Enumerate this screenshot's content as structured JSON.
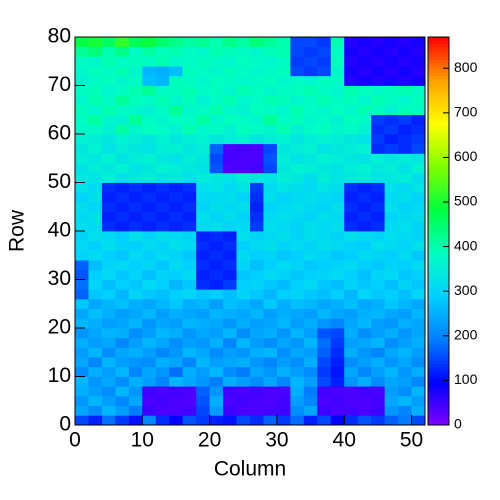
{
  "chart_data": {
    "type": "heatmap",
    "xlabel": "Column",
    "ylabel": "Row",
    "xlim": [
      0,
      52
    ],
    "ylim": [
      0,
      80
    ],
    "zlim": [
      0,
      870
    ],
    "xticks": [
      0,
      10,
      20,
      30,
      40,
      50
    ],
    "yticks": [
      0,
      10,
      20,
      30,
      40,
      50,
      60,
      70,
      80
    ],
    "zticks": [
      0,
      100,
      200,
      300,
      400,
      500,
      600,
      700,
      800
    ],
    "colorscale": [
      "#8000ff",
      "#0000ff",
      "#0080ff",
      "#00d0ff",
      "#00ffc0",
      "#00ff40",
      "#80ff00",
      "#ffff00",
      "#ffa000",
      "#ff0000"
    ],
    "z": [
      [
        150,
        120,
        180,
        140,
        110,
        200,
        130,
        100,
        160,
        140,
        120,
        110,
        150,
        130,
        170,
        140,
        180,
        120,
        150,
        100,
        130,
        160,
        140,
        170,
        190,
        150
      ],
      [
        240,
        210,
        260,
        230,
        190,
        50,
        40,
        40,
        45,
        150,
        230,
        50,
        40,
        40,
        45,
        50,
        210,
        240,
        50,
        40,
        45,
        40,
        50,
        220,
        200,
        250
      ],
      [
        220,
        260,
        230,
        200,
        240,
        40,
        45,
        40,
        40,
        160,
        250,
        40,
        45,
        40,
        40,
        45,
        230,
        200,
        40,
        45,
        40,
        40,
        45,
        240,
        260,
        230
      ],
      [
        250,
        230,
        210,
        260,
        220,
        45,
        40,
        45,
        40,
        170,
        220,
        45,
        40,
        45,
        40,
        40,
        250,
        190,
        45,
        40,
        40,
        45,
        40,
        230,
        210,
        260
      ],
      [
        260,
        220,
        240,
        210,
        250,
        230,
        200,
        260,
        240,
        220,
        190,
        250,
        230,
        210,
        240,
        200,
        260,
        230,
        150,
        120,
        220,
        250,
        210,
        240,
        230,
        200
      ],
      [
        210,
        250,
        230,
        260,
        200,
        240,
        220,
        180,
        250,
        230,
        260,
        210,
        190,
        240,
        220,
        250,
        230,
        210,
        140,
        110,
        240,
        200,
        230,
        260,
        220,
        250
      ],
      [
        240,
        200,
        260,
        230,
        220,
        210,
        250,
        240,
        200,
        260,
        230,
        240,
        250,
        220,
        200,
        230,
        210,
        250,
        150,
        120,
        210,
        230,
        250,
        220,
        240,
        210
      ],
      [
        230,
        260,
        210,
        240,
        250,
        230,
        200,
        220,
        260,
        240,
        210,
        230,
        220,
        250,
        260,
        210,
        240,
        230,
        170,
        130,
        250,
        220,
        200,
        240,
        260,
        230
      ],
      [
        250,
        230,
        240,
        200,
        230,
        260,
        240,
        210,
        230,
        220,
        250,
        200,
        260,
        230,
        210,
        240,
        220,
        260,
        180,
        140,
        230,
        240,
        260,
        210,
        230,
        250
      ],
      [
        220,
        240,
        260,
        250,
        210,
        230,
        260,
        250,
        220,
        240,
        230,
        260,
        210,
        240,
        250,
        220,
        260,
        230,
        160,
        150,
        250,
        210,
        230,
        250,
        220,
        240
      ],
      [
        260,
        250,
        230,
        240,
        260,
        220,
        240,
        230,
        260,
        250,
        240,
        220,
        250,
        230,
        240,
        260,
        230,
        250,
        220,
        200,
        240,
        260,
        230,
        220,
        250,
        240
      ],
      [
        240,
        270,
        250,
        230,
        240,
        260,
        230,
        250,
        240,
        230,
        260,
        250,
        240,
        260,
        230,
        250,
        240,
        230,
        260,
        240,
        230,
        250,
        260,
        240,
        230,
        260
      ],
      [
        280,
        240,
        260,
        270,
        250,
        240,
        260,
        280,
        250,
        260,
        230,
        270,
        260,
        240,
        280,
        250,
        270,
        260,
        240,
        250,
        270,
        240,
        250,
        280,
        260,
        240
      ],
      [
        170,
        280,
        290,
        260,
        300,
        280,
        270,
        290,
        300,
        280,
        290,
        270,
        300,
        280,
        260,
        290,
        300,
        280,
        270,
        290,
        260,
        300,
        280,
        290,
        270,
        300
      ],
      [
        180,
        300,
        270,
        290,
        280,
        310,
        290,
        260,
        280,
        130,
        120,
        140,
        290,
        300,
        280,
        270,
        290,
        310,
        280,
        270,
        300,
        280,
        290,
        270,
        300,
        280
      ],
      [
        160,
        290,
        310,
        280,
        300,
        270,
        300,
        290,
        310,
        120,
        130,
        120,
        280,
        290,
        310,
        300,
        280,
        290,
        300,
        310,
        290,
        270,
        300,
        310,
        280,
        290
      ],
      [
        170,
        270,
        300,
        310,
        290,
        300,
        280,
        310,
        290,
        130,
        120,
        130,
        300,
        270,
        290,
        310,
        300,
        280,
        290,
        300,
        310,
        290,
        280,
        300,
        290,
        310
      ],
      [
        300,
        310,
        290,
        280,
        310,
        290,
        310,
        300,
        280,
        120,
        130,
        120,
        310,
        290,
        300,
        280,
        290,
        310,
        300,
        280,
        290,
        310,
        300,
        290,
        310,
        280
      ],
      [
        310,
        290,
        320,
        300,
        290,
        310,
        300,
        320,
        310,
        130,
        120,
        130,
        290,
        310,
        320,
        300,
        310,
        300,
        320,
        310,
        300,
        290,
        320,
        310,
        300,
        320
      ],
      [
        300,
        320,
        310,
        290,
        320,
        300,
        320,
        310,
        300,
        120,
        130,
        120,
        320,
        300,
        310,
        320,
        300,
        320,
        310,
        300,
        320,
        310,
        300,
        320,
        310,
        300
      ],
      [
        320,
        310,
        130,
        120,
        130,
        120,
        130,
        120,
        130,
        310,
        320,
        300,
        310,
        140,
        320,
        310,
        300,
        320,
        310,
        320,
        130,
        120,
        130,
        310,
        320,
        300
      ],
      [
        310,
        320,
        120,
        130,
        120,
        130,
        120,
        130,
        120,
        320,
        300,
        320,
        300,
        130,
        310,
        320,
        310,
        300,
        320,
        310,
        120,
        130,
        120,
        300,
        310,
        320
      ],
      [
        320,
        300,
        130,
        120,
        130,
        120,
        130,
        120,
        130,
        300,
        320,
        310,
        320,
        120,
        300,
        310,
        320,
        310,
        300,
        320,
        130,
        120,
        130,
        320,
        300,
        310
      ],
      [
        300,
        320,
        120,
        130,
        120,
        130,
        120,
        130,
        120,
        310,
        310,
        320,
        300,
        130,
        320,
        300,
        310,
        320,
        310,
        300,
        120,
        130,
        120,
        310,
        320,
        300
      ],
      [
        330,
        310,
        130,
        120,
        130,
        120,
        130,
        120,
        130,
        320,
        330,
        310,
        330,
        140,
        310,
        330,
        320,
        310,
        330,
        320,
        130,
        120,
        130,
        320,
        310,
        330
      ],
      [
        340,
        330,
        350,
        320,
        340,
        350,
        330,
        340,
        320,
        350,
        340,
        330,
        350,
        340,
        330,
        350,
        340,
        320,
        350,
        330,
        340,
        350,
        330,
        340,
        350,
        320
      ],
      [
        330,
        350,
        340,
        360,
        330,
        340,
        360,
        350,
        340,
        330,
        160,
        40,
        40,
        45,
        150,
        340,
        360,
        350,
        340,
        330,
        350,
        360,
        340,
        350,
        330,
        360
      ],
      [
        350,
        340,
        360,
        330,
        350,
        360,
        340,
        330,
        350,
        340,
        150,
        45,
        40,
        40,
        160,
        350,
        330,
        340,
        360,
        350,
        340,
        330,
        360,
        340,
        350,
        340
      ],
      [
        340,
        360,
        330,
        350,
        340,
        330,
        350,
        360,
        340,
        350,
        170,
        40,
        45,
        40,
        150,
        340,
        350,
        360,
        330,
        340,
        350,
        360,
        130,
        140,
        130,
        150
      ],
      [
        360,
        350,
        340,
        360,
        350,
        340,
        360,
        340,
        350,
        360,
        340,
        350,
        360,
        340,
        350,
        360,
        340,
        350,
        360,
        350,
        340,
        330,
        140,
        120,
        130,
        140
      ],
      [
        370,
        380,
        360,
        410,
        370,
        390,
        380,
        360,
        400,
        370,
        380,
        360,
        390,
        380,
        370,
        400,
        360,
        380,
        390,
        370,
        380,
        360,
        130,
        140,
        120,
        130
      ],
      [
        380,
        410,
        370,
        360,
        420,
        380,
        370,
        390,
        380,
        410,
        370,
        390,
        380,
        370,
        420,
        380,
        390,
        370,
        380,
        360,
        390,
        380,
        140,
        130,
        140,
        120
      ],
      [
        390,
        370,
        400,
        380,
        370,
        360,
        380,
        420,
        370,
        380,
        400,
        370,
        360,
        390,
        380,
        370,
        400,
        380,
        370,
        390,
        370,
        400,
        380,
        360,
        390,
        380
      ],
      [
        370,
        400,
        380,
        420,
        390,
        380,
        400,
        370,
        390,
        360,
        380,
        400,
        370,
        380,
        400,
        390,
        370,
        380,
        400,
        380,
        390,
        370,
        400,
        380,
        370,
        390
      ],
      [
        380,
        390,
        370,
        380,
        400,
        420,
        380,
        390,
        400,
        380,
        390,
        370,
        400,
        390,
        370,
        380,
        390,
        400,
        380,
        370,
        400,
        390,
        370,
        390,
        400,
        380
      ],
      [
        360,
        380,
        390,
        370,
        380,
        270,
        260,
        390,
        380,
        370,
        390,
        380,
        370,
        380,
        390,
        370,
        380,
        370,
        390,
        380,
        70,
        80,
        70,
        80,
        70,
        80
      ],
      [
        370,
        390,
        380,
        400,
        370,
        260,
        250,
        270,
        390,
        380,
        370,
        390,
        380,
        370,
        380,
        390,
        150,
        140,
        150,
        370,
        80,
        70,
        80,
        70,
        80,
        70
      ],
      [
        380,
        370,
        400,
        380,
        390,
        380,
        400,
        370,
        380,
        390,
        380,
        370,
        390,
        380,
        370,
        380,
        140,
        150,
        140,
        390,
        70,
        80,
        70,
        80,
        70,
        80
      ],
      [
        420,
        440,
        400,
        430,
        380,
        410,
        390,
        400,
        380,
        370,
        400,
        390,
        380,
        370,
        390,
        400,
        150,
        140,
        150,
        380,
        80,
        70,
        80,
        70,
        80,
        70
      ],
      [
        480,
        500,
        460,
        520,
        470,
        490,
        450,
        430,
        410,
        420,
        400,
        430,
        410,
        440,
        420,
        400,
        150,
        150,
        140,
        400,
        70,
        80,
        70,
        80,
        70,
        80
      ]
    ]
  }
}
